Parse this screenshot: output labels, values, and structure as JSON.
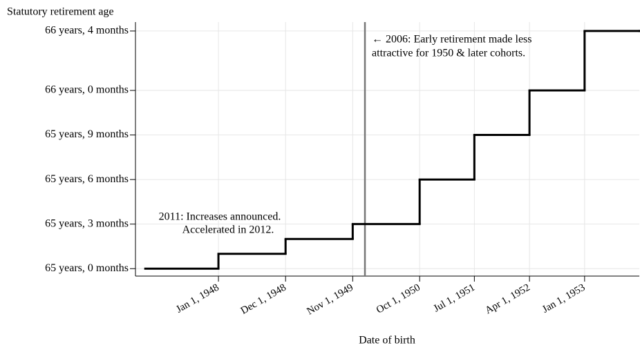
{
  "chart_data": {
    "type": "step",
    "y_title": "Statutory retirement age",
    "x_title": "Date of birth",
    "x": [
      "1947-01-01",
      "1948-01-01",
      "1948-12-01",
      "1949-11-01",
      "1950-10-01",
      "1951-07-01",
      "1952-04-01",
      "1953-01-01",
      "1953-10-01"
    ],
    "values": [
      780,
      781,
      782,
      783,
      786,
      789,
      792,
      796,
      796
    ],
    "color": "#000000",
    "xlim": [
      "1946-11-13",
      "1953-10-01"
    ],
    "ylim": [
      779.5,
      796.6
    ],
    "xticks": [
      {
        "value": "1948-01-01",
        "label": "Jan 1, 1948"
      },
      {
        "value": "1948-12-01",
        "label": "Dec 1, 1948"
      },
      {
        "value": "1949-11-01",
        "label": "Nov 1, 1949"
      },
      {
        "value": "1950-10-01",
        "label": "Oct 1, 1950"
      },
      {
        "value": "1951-07-01",
        "label": "Jul 1, 1951"
      },
      {
        "value": "1952-04-01",
        "label": "Apr 1, 1952"
      },
      {
        "value": "1953-01-01",
        "label": "Jan 1, 1953"
      }
    ],
    "yticks": [
      {
        "value": 780,
        "label": "65 years, 0 months"
      },
      {
        "value": 783,
        "label": "65 years, 3 months"
      },
      {
        "value": 786,
        "label": "65 years, 6 months"
      },
      {
        "value": 789,
        "label": "65 years, 9 months"
      },
      {
        "value": 792,
        "label": "66 years, 0 months"
      },
      {
        "value": 796,
        "label": "66 years, 4 months"
      }
    ],
    "grid": true,
    "vline": {
      "x": "1950-01-01",
      "color": "#777777",
      "text": [
        "← 2006: Early retirement made less",
        "attractive for 1950 & later cohorts."
      ]
    },
    "annotation": {
      "text": [
        "2011: Increases announced.",
        "Accelerated in 2012."
      ]
    }
  }
}
